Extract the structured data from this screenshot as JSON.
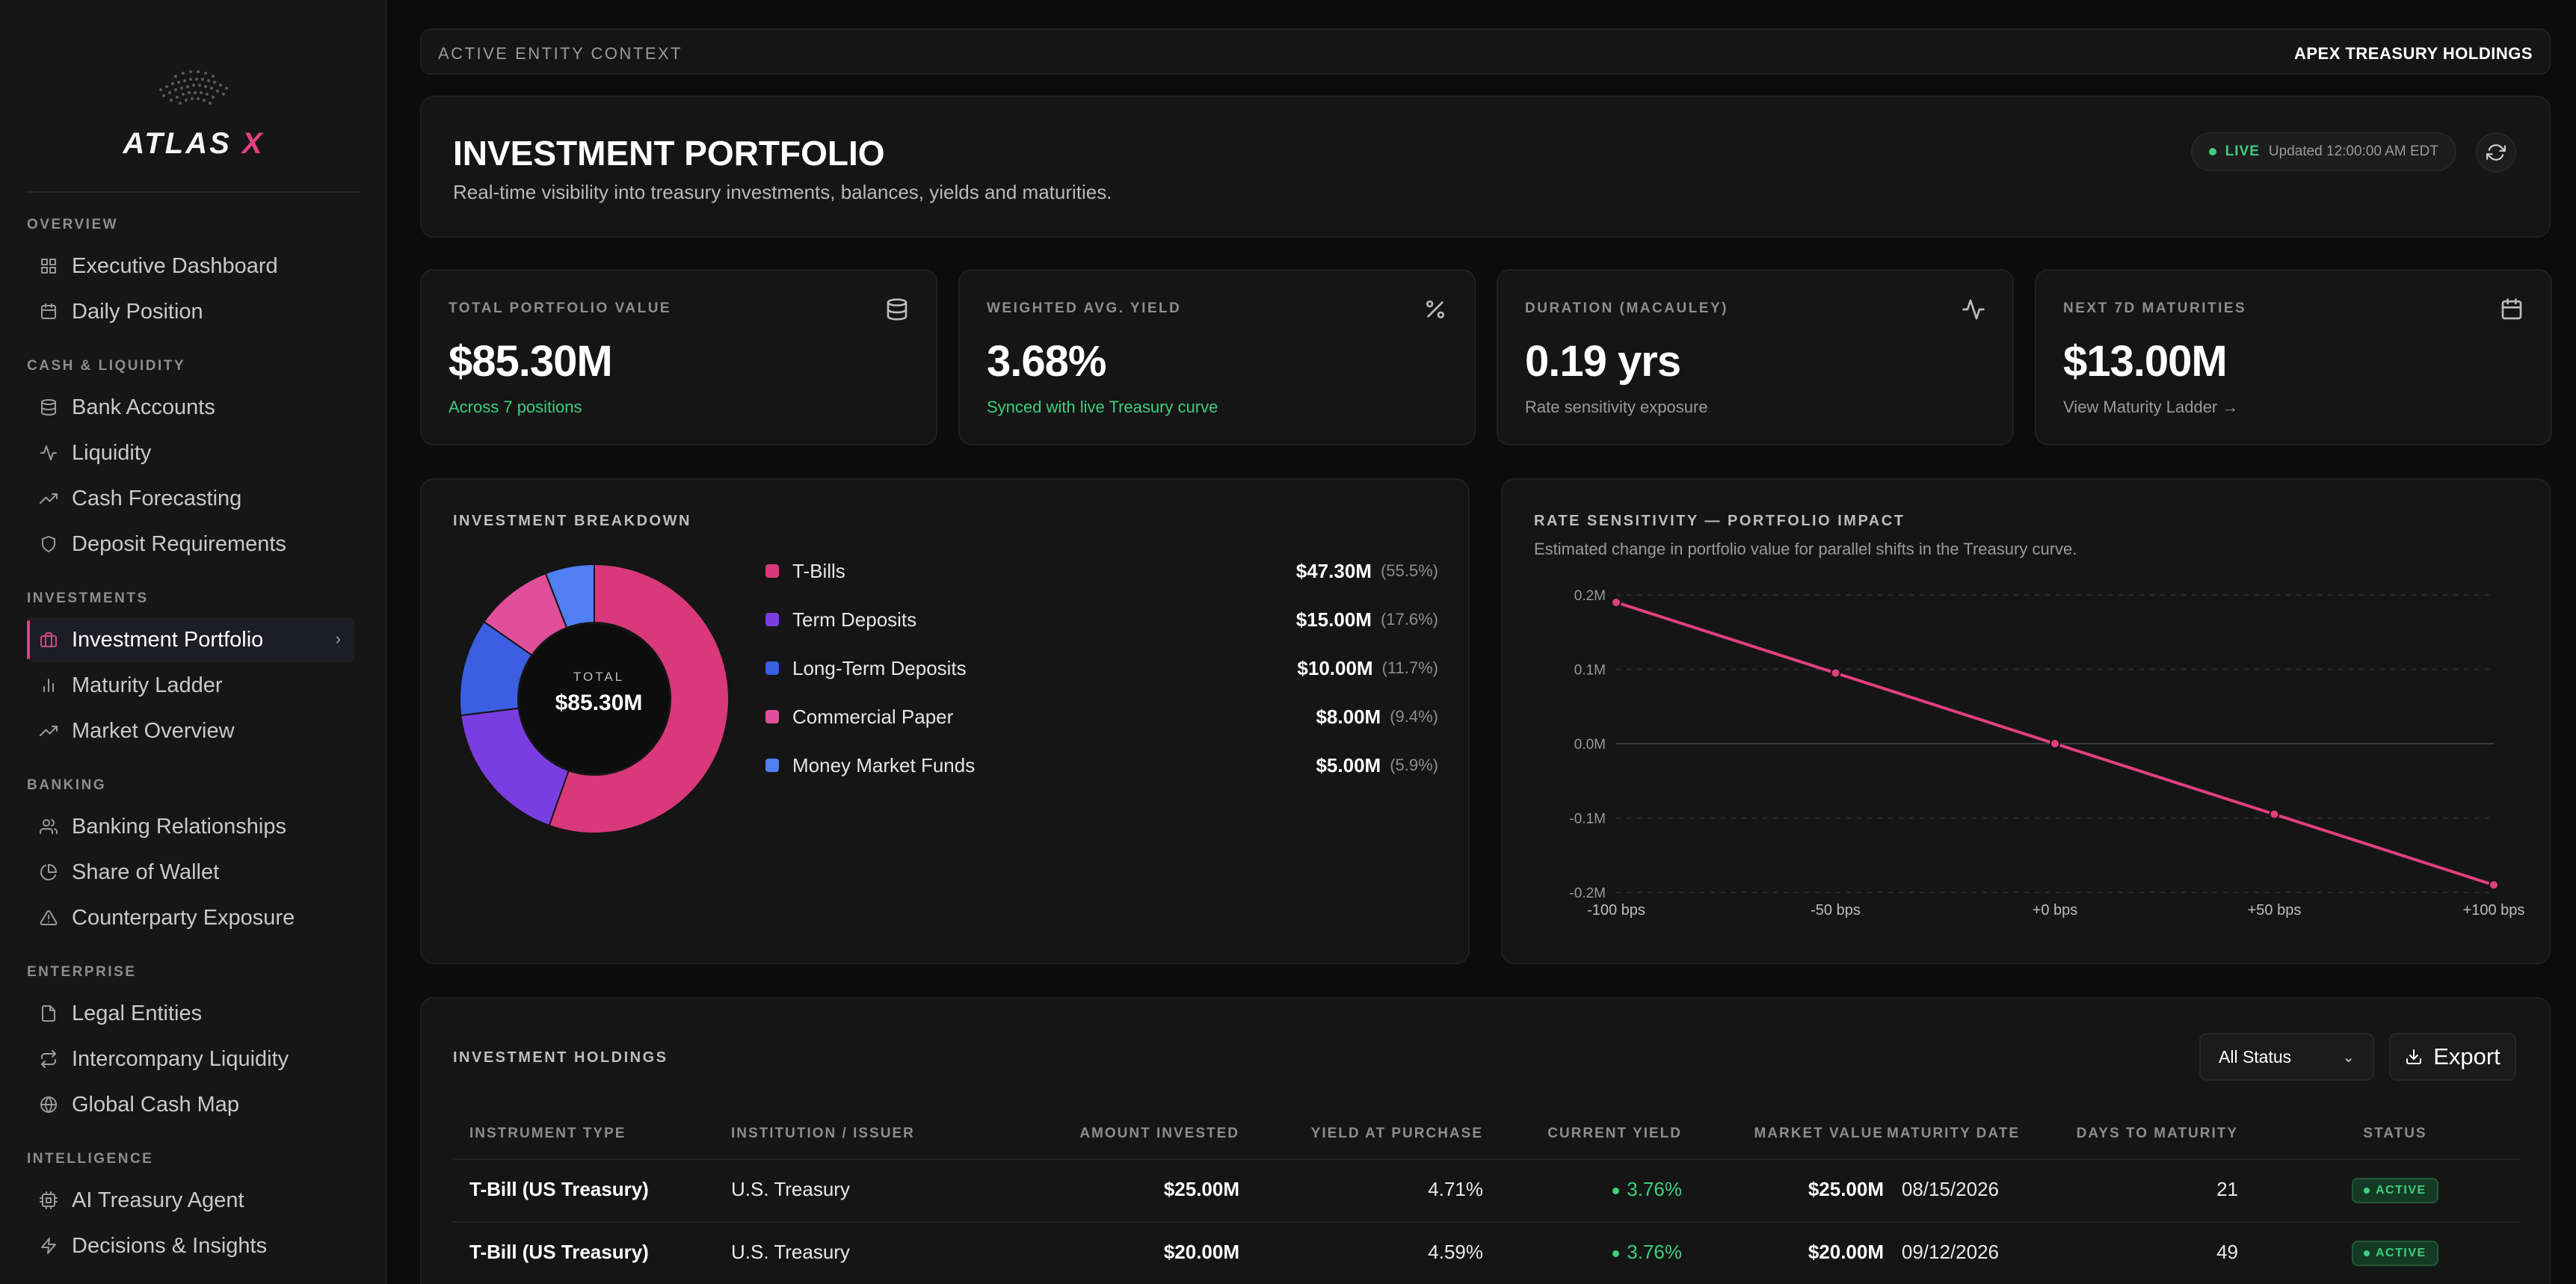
{
  "brand": {
    "name": "ATLAS",
    "suffix": "X"
  },
  "sidebar": {
    "sections": [
      {
        "label": "OVERVIEW",
        "items": [
          {
            "label": "Executive Dashboard",
            "icon": "grid-icon"
          },
          {
            "label": "Daily Position",
            "icon": "calendar-icon"
          }
        ]
      },
      {
        "label": "CASH & LIQUIDITY",
        "items": [
          {
            "label": "Bank Accounts",
            "icon": "database-icon"
          },
          {
            "label": "Liquidity",
            "icon": "activity-icon"
          },
          {
            "label": "Cash Forecasting",
            "icon": "trending-up-icon"
          },
          {
            "label": "Deposit Requirements",
            "icon": "shield-icon"
          }
        ]
      },
      {
        "label": "INVESTMENTS",
        "items": [
          {
            "label": "Investment Portfolio",
            "icon": "briefcase-icon",
            "active": true
          },
          {
            "label": "Maturity Ladder",
            "icon": "bar-chart-icon"
          },
          {
            "label": "Market Overview",
            "icon": "trending-up-icon"
          }
        ]
      },
      {
        "label": "BANKING",
        "items": [
          {
            "label": "Banking Relationships",
            "icon": "users-icon"
          },
          {
            "label": "Share of Wallet",
            "icon": "pie-chart-icon"
          },
          {
            "label": "Counterparty Exposure",
            "icon": "alert-triangle-icon"
          }
        ]
      },
      {
        "label": "ENTERPRISE",
        "items": [
          {
            "label": "Legal Entities",
            "icon": "file-icon"
          },
          {
            "label": "Intercompany Liquidity",
            "icon": "repeat-icon"
          },
          {
            "label": "Global Cash Map",
            "icon": "globe-icon"
          }
        ]
      },
      {
        "label": "INTELLIGENCE",
        "items": [
          {
            "label": "AI Treasury Agent",
            "icon": "cpu-icon"
          },
          {
            "label": "Decisions & Insights",
            "icon": "zap-icon"
          }
        ]
      }
    ]
  },
  "context": {
    "label": "ACTIVE ENTITY CONTEXT",
    "entity": "APEX TREASURY HOLDINGS"
  },
  "header": {
    "title": "INVESTMENT PORTFOLIO",
    "subtitle": "Real-time visibility into treasury investments, balances, yields and maturities.",
    "live_label": "LIVE",
    "updated": "Updated 12:00:00 AM EDT"
  },
  "kpis": [
    {
      "label": "TOTAL PORTFOLIO VALUE",
      "value": "$85.30M",
      "sub": "Across 7 positions",
      "sub_tone": "green",
      "icon": "database-icon"
    },
    {
      "label": "WEIGHTED AVG. YIELD",
      "value": "3.68%",
      "sub": "Synced with live Treasury curve",
      "sub_tone": "green",
      "icon": "percent-icon"
    },
    {
      "label": "DURATION (MACAULEY)",
      "value": "0.19 yrs",
      "sub": "Rate sensitivity exposure",
      "sub_tone": "muted",
      "icon": "activity-icon"
    },
    {
      "label": "NEXT 7D MATURITIES",
      "value": "$13.00M",
      "sub": "View Maturity Ladder →",
      "sub_tone": "muted",
      "icon": "calendar-icon"
    }
  ],
  "breakdown": {
    "title": "INVESTMENT BREAKDOWN",
    "center_label": "TOTAL",
    "center_value": "$85.30M",
    "items": [
      {
        "name": "T-Bills",
        "value": "$47.30M",
        "pct": "(55.5%)",
        "share": 55.5,
        "color": "#d9387a"
      },
      {
        "name": "Term Deposits",
        "value": "$15.00M",
        "pct": "(17.6%)",
        "share": 17.6,
        "color": "#7a3ee0"
      },
      {
        "name": "Long-Term Deposits",
        "value": "$10.00M",
        "pct": "(11.7%)",
        "share": 11.7,
        "color": "#3b5fe0"
      },
      {
        "name": "Commercial Paper",
        "value": "$8.00M",
        "pct": "(9.4%)",
        "share": 9.4,
        "color": "#e0509a"
      },
      {
        "name": "Money Market Funds",
        "value": "$5.00M",
        "pct": "(5.9%)",
        "share": 5.9,
        "color": "#4f7ff0"
      }
    ]
  },
  "chart_data": {
    "type": "line",
    "title": "RATE SENSITIVITY — PORTFOLIO IMPACT",
    "subtitle": "Estimated change in portfolio value for parallel shifts in the Treasury curve.",
    "categories": [
      "-100 bps",
      "-50 bps",
      "+0 bps",
      "+50 bps",
      "+100 bps"
    ],
    "values": [
      0.19,
      0.095,
      0.0,
      -0.095,
      -0.19
    ],
    "ylim": [
      -0.2,
      0.2
    ],
    "yticks": [
      "0.2M",
      "0.1M",
      "0.0M",
      "-0.1M",
      "-0.2M"
    ],
    "yticks_values": [
      0.2,
      0.1,
      0.0,
      -0.1,
      -0.2
    ],
    "color": "#e0407f",
    "grid": true
  },
  "holdings": {
    "title": "INVESTMENT HOLDINGS",
    "filter_value": "All Status",
    "export_label": "Export",
    "columns": [
      "INSTRUMENT TYPE",
      "INSTITUTION / ISSUER",
      "AMOUNT INVESTED",
      "YIELD AT PURCHASE",
      "CURRENT YIELD",
      "MARKET VALUE",
      "MATURITY DATE",
      "DAYS TO MATURITY",
      "STATUS"
    ],
    "rows": [
      {
        "instrument": "T-Bill (US Treasury)",
        "issuer": "U.S. Treasury",
        "amount": "$25.00M",
        "yield_purchase": "4.71%",
        "current_yield": "3.76%",
        "market_value": "$25.00M",
        "maturity": "08/15/2026",
        "days": "21",
        "status": "ACTIVE"
      },
      {
        "instrument": "T-Bill (US Treasury)",
        "issuer": "U.S. Treasury",
        "amount": "$20.00M",
        "yield_purchase": "4.59%",
        "current_yield": "3.76%",
        "market_value": "$20.00M",
        "maturity": "09/12/2026",
        "days": "49",
        "status": "ACTIVE"
      }
    ]
  }
}
